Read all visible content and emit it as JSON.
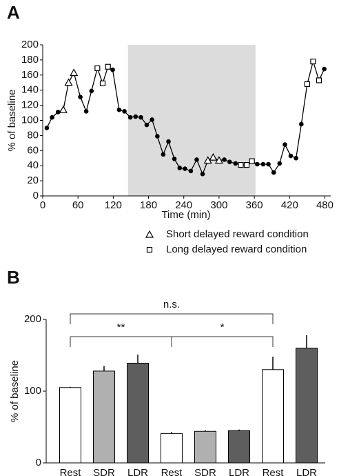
{
  "chart_data": [
    {
      "type": "line",
      "panel_label": "A",
      "y_label": "% of baseline",
      "x_label": "Time (min)",
      "x": [
        7,
        16,
        26,
        35,
        44,
        53,
        64,
        74,
        83,
        93,
        102,
        111,
        119,
        130,
        139,
        149,
        158,
        167,
        177,
        186,
        195,
        205,
        214,
        224,
        233,
        242,
        252,
        262,
        272,
        281,
        290,
        300,
        309,
        318,
        328,
        337,
        347,
        356,
        365,
        375,
        384,
        393,
        403,
        412,
        422,
        431,
        440,
        450,
        460,
        470,
        479
      ],
      "values": [
        90,
        104,
        111,
        114,
        150,
        163,
        131,
        112,
        139,
        169,
        149,
        171,
        167,
        114,
        112,
        104,
        105,
        104,
        94,
        101,
        79,
        55,
        72,
        49,
        37,
        36,
        33,
        48,
        29,
        47,
        51,
        47,
        48,
        45,
        43,
        41,
        41,
        46,
        42,
        42,
        42,
        31,
        43,
        68,
        53,
        50,
        95,
        148,
        178,
        153,
        168
      ],
      "point_markers": [
        "circle",
        "circle",
        "circle",
        "triangle",
        "triangle",
        "triangle",
        "circle",
        "circle",
        "circle",
        "square",
        "square",
        "square",
        "circle",
        "circle",
        "circle",
        "circle",
        "circle",
        "circle",
        "circle",
        "circle",
        "circle",
        "circle",
        "circle",
        "circle",
        "circle",
        "circle",
        "circle",
        "circle",
        "circle",
        "triangle",
        "triangle",
        "triangle",
        "circle",
        "circle",
        "circle",
        "square",
        "square",
        "square",
        "circle",
        "circle",
        "circle",
        "circle",
        "circle",
        "circle",
        "circle",
        "circle",
        "circle",
        "square",
        "square",
        "square",
        "circle"
      ],
      "legend": [
        {
          "marker": "triangle",
          "label": "Short delayed reward condition"
        },
        {
          "marker": "square",
          "label": "Long delayed reward condition"
        }
      ],
      "shaded_region": [
        145,
        362
      ],
      "xlim": [
        0,
        490
      ],
      "xticks": [
        0,
        60,
        120,
        180,
        240,
        300,
        360,
        420,
        480
      ],
      "ylim": [
        0,
        200
      ],
      "yticks": [
        0,
        20,
        40,
        60,
        80,
        100,
        120,
        140,
        160,
        180,
        200
      ],
      "color": "#000000",
      "shade_color": "#dcdcdc"
    },
    {
      "type": "bar",
      "panel_label": "B",
      "y_label": "% of baseline",
      "categories": [
        "Rest",
        "SDR",
        "LDR",
        "Rest",
        "SDR",
        "LDR",
        "Rest",
        "LDR"
      ],
      "values": [
        105,
        128,
        139,
        41,
        44,
        45,
        130,
        160
      ],
      "errors": [
        1,
        7,
        12,
        2,
        1.5,
        1.5,
        18,
        18
      ],
      "colors": [
        "#ffffff",
        "#b0b0b0",
        "#5e5e5e",
        "#ffffff",
        "#b0b0b0",
        "#5e5e5e",
        "#ffffff",
        "#5e5e5e"
      ],
      "ylim": [
        0,
        200
      ],
      "yticks": [
        0,
        100,
        200
      ],
      "annotations": [
        {
          "label": "n.s.",
          "from": 0,
          "to": 6
        },
        {
          "label": "**",
          "from": 0,
          "to": 3
        },
        {
          "label": "*",
          "from": 3,
          "to": 6
        }
      ]
    }
  ]
}
